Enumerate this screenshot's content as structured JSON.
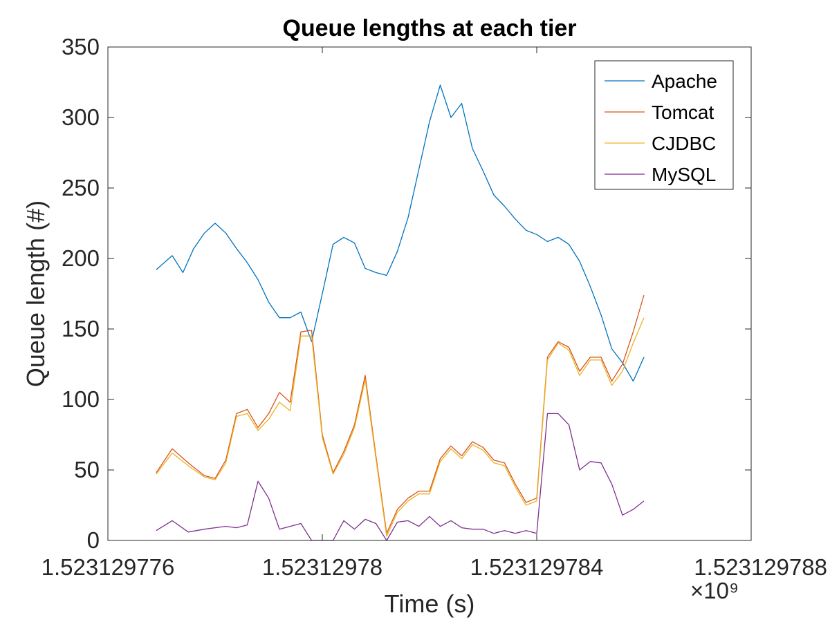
{
  "chart_data": {
    "type": "line",
    "title": "Queue lengths at each tier",
    "xlabel": "Time (s)",
    "ylabel": "Queue length (#)",
    "x_exponent_label": "×10⁹",
    "xlim": [
      1.523129776,
      1.523129788
    ],
    "ylim": [
      0,
      350
    ],
    "x_ticks": [
      1.523129776,
      1.52312978,
      1.523129784,
      1.523129788
    ],
    "x_tick_labels": [
      "1.523129776",
      "1.52312978",
      "1.523129784",
      "1.523129788"
    ],
    "y_ticks": [
      0,
      50,
      100,
      150,
      200,
      250,
      300,
      350
    ],
    "y_tick_labels": [
      "0",
      "50",
      "100",
      "150",
      "200",
      "250",
      "300",
      "350"
    ],
    "legend_position": "top-right",
    "grid": false,
    "series": [
      {
        "name": "Apache",
        "color": "#0072BD",
        "x": [
          1.5231297769,
          1.5231297772,
          1.5231297774,
          1.5231297776,
          1.5231297778,
          1.523129778,
          1.5231297782,
          1.5231297784,
          1.5231297786,
          1.5231297788,
          1.523129779,
          1.5231297792,
          1.5231297794,
          1.5231297796,
          1.5231297798,
          1.52312978,
          1.5231297802,
          1.5231297804,
          1.5231297806,
          1.5231297808,
          1.523129781,
          1.5231297812,
          1.5231297814,
          1.5231297816,
          1.5231297818,
          1.523129782,
          1.5231297822,
          1.5231297824,
          1.5231297826,
          1.5231297828,
          1.523129783,
          1.5231297832,
          1.5231297834,
          1.5231297836,
          1.5231297838,
          1.523129784,
          1.5231297842,
          1.5231297844,
          1.5231297846,
          1.5231297848,
          1.523129785,
          1.5231297852,
          1.5231297854,
          1.5231297856,
          1.5231297858,
          1.523129786
        ],
        "values": [
          192,
          202,
          190,
          207,
          218,
          225,
          218,
          207,
          197,
          185,
          169,
          158,
          158,
          162,
          141,
          175,
          210,
          215,
          211,
          193,
          190,
          188,
          205,
          229,
          263,
          297,
          323,
          300,
          310,
          278,
          262,
          245,
          237,
          228,
          220,
          217,
          212,
          215,
          210,
          198,
          180,
          160,
          136,
          126,
          113,
          130
        ]
      },
      {
        "name": "Tomcat",
        "color": "#D95319",
        "x": [
          1.5231297769,
          1.5231297772,
          1.5231297775,
          1.5231297778,
          1.523129778,
          1.5231297782,
          1.5231297784,
          1.5231297786,
          1.5231297788,
          1.523129779,
          1.5231297792,
          1.5231297794,
          1.5231297796,
          1.5231297798,
          1.52312978,
          1.5231297802,
          1.5231297804,
          1.5231297806,
          1.5231297808,
          1.523129781,
          1.5231297812,
          1.5231297814,
          1.5231297816,
          1.5231297818,
          1.523129782,
          1.5231297822,
          1.5231297824,
          1.5231297826,
          1.5231297828,
          1.523129783,
          1.5231297832,
          1.5231297834,
          1.5231297836,
          1.5231297838,
          1.523129784,
          1.5231297842,
          1.5231297844,
          1.5231297846,
          1.5231297848,
          1.523129785,
          1.5231297852,
          1.5231297854,
          1.5231297856,
          1.5231297858,
          1.523129786
        ],
        "values": [
          48,
          65,
          55,
          46,
          44,
          57,
          90,
          93,
          80,
          90,
          105,
          98,
          148,
          149,
          75,
          48,
          63,
          82,
          117,
          60,
          5,
          22,
          30,
          35,
          35,
          58,
          67,
          60,
          70,
          66,
          57,
          55,
          40,
          27,
          30,
          130,
          141,
          137,
          120,
          130,
          130,
          113,
          125,
          148,
          174
        ]
      },
      {
        "name": "CJDBC",
        "color": "#EDB120",
        "x": [
          1.5231297769,
          1.5231297772,
          1.5231297775,
          1.5231297778,
          1.523129778,
          1.5231297782,
          1.5231297784,
          1.5231297786,
          1.5231297788,
          1.523129779,
          1.5231297792,
          1.5231297794,
          1.5231297796,
          1.5231297798,
          1.52312978,
          1.5231297802,
          1.5231297804,
          1.5231297806,
          1.5231297808,
          1.523129781,
          1.5231297812,
          1.5231297814,
          1.5231297816,
          1.5231297818,
          1.523129782,
          1.5231297822,
          1.5231297824,
          1.5231297826,
          1.5231297828,
          1.523129783,
          1.5231297832,
          1.5231297834,
          1.5231297836,
          1.5231297838,
          1.523129784,
          1.5231297842,
          1.5231297844,
          1.5231297846,
          1.5231297848,
          1.523129785,
          1.5231297852,
          1.5231297854,
          1.5231297856,
          1.5231297858,
          1.523129786
        ],
        "values": [
          47,
          62,
          53,
          45,
          43,
          55,
          88,
          90,
          78,
          86,
          98,
          92,
          145,
          145,
          73,
          47,
          61,
          80,
          114,
          58,
          3,
          20,
          28,
          33,
          33,
          56,
          65,
          58,
          68,
          64,
          55,
          53,
          38,
          25,
          28,
          128,
          140,
          135,
          117,
          128,
          128,
          110,
          120,
          140,
          158
        ]
      },
      {
        "name": "MySQL",
        "color": "#7E2F8E",
        "x": [
          1.5231297769,
          1.5231297772,
          1.5231297775,
          1.5231297778,
          1.523129778,
          1.5231297782,
          1.5231297784,
          1.5231297786,
          1.5231297788,
          1.523129779,
          1.5231297792,
          1.5231297794,
          1.5231297796,
          1.5231297798,
          1.52312978,
          1.5231297802,
          1.5231297804,
          1.5231297806,
          1.5231297808,
          1.523129781,
          1.5231297812,
          1.5231297814,
          1.5231297816,
          1.5231297818,
          1.523129782,
          1.5231297822,
          1.5231297824,
          1.5231297826,
          1.5231297828,
          1.523129783,
          1.5231297832,
          1.5231297834,
          1.5231297836,
          1.5231297838,
          1.523129784,
          1.5231297842,
          1.5231297844,
          1.5231297846,
          1.5231297848,
          1.523129785,
          1.5231297852,
          1.5231297854,
          1.5231297856,
          1.5231297858,
          1.523129786
        ],
        "values": [
          7,
          14,
          6,
          8,
          9,
          10,
          9,
          11,
          42,
          30,
          8,
          10,
          12,
          0,
          0,
          0,
          14,
          8,
          15,
          12,
          0,
          13,
          14,
          10,
          17,
          10,
          14,
          9,
          8,
          8,
          5,
          7,
          5,
          7,
          5,
          90,
          90,
          82,
          50,
          56,
          55,
          40,
          18,
          22,
          28
        ]
      }
    ]
  }
}
